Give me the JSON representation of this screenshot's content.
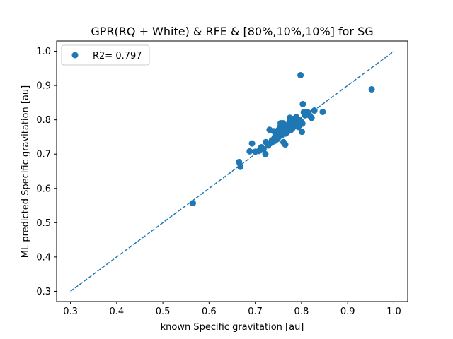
{
  "chart_data": {
    "type": "scatter",
    "title": "GPR(RQ + White) & RFE & [80%,10%,10%] for SG",
    "xlabel": "known Specific gravitation [au]",
    "ylabel": "ML predicted Specific gravitation [au]",
    "xlim": [
      0.27,
      1.03
    ],
    "ylim": [
      0.27,
      1.03
    ],
    "xticks": [
      "0.3",
      "0.4",
      "0.5",
      "0.6",
      "0.7",
      "0.8",
      "0.9",
      "1.0"
    ],
    "yticks": [
      "0.3",
      "0.4",
      "0.5",
      "0.6",
      "0.7",
      "0.8",
      "0.9",
      "1.0"
    ],
    "legend_position": "top-left",
    "grid": false,
    "series": [
      {
        "name": "R2= 0.797",
        "color": "#1f77b4",
        "points": [
          [
            0.565,
            0.557
          ],
          [
            0.665,
            0.677
          ],
          [
            0.668,
            0.663
          ],
          [
            0.688,
            0.708
          ],
          [
            0.693,
            0.731
          ],
          [
            0.7,
            0.707
          ],
          [
            0.708,
            0.709
          ],
          [
            0.713,
            0.72
          ],
          [
            0.718,
            0.714
          ],
          [
            0.722,
            0.7
          ],
          [
            0.723,
            0.735
          ],
          [
            0.728,
            0.725
          ],
          [
            0.731,
            0.771
          ],
          [
            0.733,
            0.732
          ],
          [
            0.736,
            0.74
          ],
          [
            0.738,
            0.736
          ],
          [
            0.74,
            0.767
          ],
          [
            0.742,
            0.749
          ],
          [
            0.743,
            0.739
          ],
          [
            0.745,
            0.755
          ],
          [
            0.747,
            0.76
          ],
          [
            0.748,
            0.744
          ],
          [
            0.75,
            0.77
          ],
          [
            0.751,
            0.75
          ],
          [
            0.752,
            0.762
          ],
          [
            0.754,
            0.78
          ],
          [
            0.755,
            0.79
          ],
          [
            0.756,
            0.766
          ],
          [
            0.757,
            0.755
          ],
          [
            0.758,
            0.776
          ],
          [
            0.759,
            0.76
          ],
          [
            0.76,
            0.79
          ],
          [
            0.761,
            0.735
          ],
          [
            0.762,
            0.77
          ],
          [
            0.763,
            0.78
          ],
          [
            0.765,
            0.728
          ],
          [
            0.766,
            0.76
          ],
          [
            0.767,
            0.772
          ],
          [
            0.768,
            0.783
          ],
          [
            0.769,
            0.764
          ],
          [
            0.77,
            0.775
          ],
          [
            0.772,
            0.768
          ],
          [
            0.774,
            0.793
          ],
          [
            0.775,
            0.806
          ],
          [
            0.776,
            0.78
          ],
          [
            0.777,
            0.77
          ],
          [
            0.778,
            0.79
          ],
          [
            0.779,
            0.8
          ],
          [
            0.78,
            0.785
          ],
          [
            0.781,
            0.776
          ],
          [
            0.782,
            0.795
          ],
          [
            0.783,
            0.803
          ],
          [
            0.784,
            0.781
          ],
          [
            0.785,
            0.79
          ],
          [
            0.786,
            0.783
          ],
          [
            0.787,
            0.8
          ],
          [
            0.788,
            0.792
          ],
          [
            0.789,
            0.808
          ],
          [
            0.79,
            0.786
          ],
          [
            0.791,
            0.795
          ],
          [
            0.793,
            0.779
          ],
          [
            0.795,
            0.79
          ],
          [
            0.796,
            0.8
          ],
          [
            0.797,
            0.785
          ],
          [
            0.798,
            0.93
          ],
          [
            0.799,
            0.795
          ],
          [
            0.801,
            0.765
          ],
          [
            0.802,
            0.789
          ],
          [
            0.803,
            0.846
          ],
          [
            0.805,
            0.822
          ],
          [
            0.808,
            0.813
          ],
          [
            0.812,
            0.823
          ],
          [
            0.815,
            0.821
          ],
          [
            0.818,
            0.812
          ],
          [
            0.822,
            0.806
          ],
          [
            0.828,
            0.827
          ],
          [
            0.846,
            0.823
          ],
          [
            0.952,
            0.889
          ]
        ]
      }
    ],
    "reference_line": {
      "x": [
        0.3,
        1.0
      ],
      "y": [
        0.3,
        1.0
      ],
      "style": "dashed",
      "color": "#1f77b4"
    }
  }
}
